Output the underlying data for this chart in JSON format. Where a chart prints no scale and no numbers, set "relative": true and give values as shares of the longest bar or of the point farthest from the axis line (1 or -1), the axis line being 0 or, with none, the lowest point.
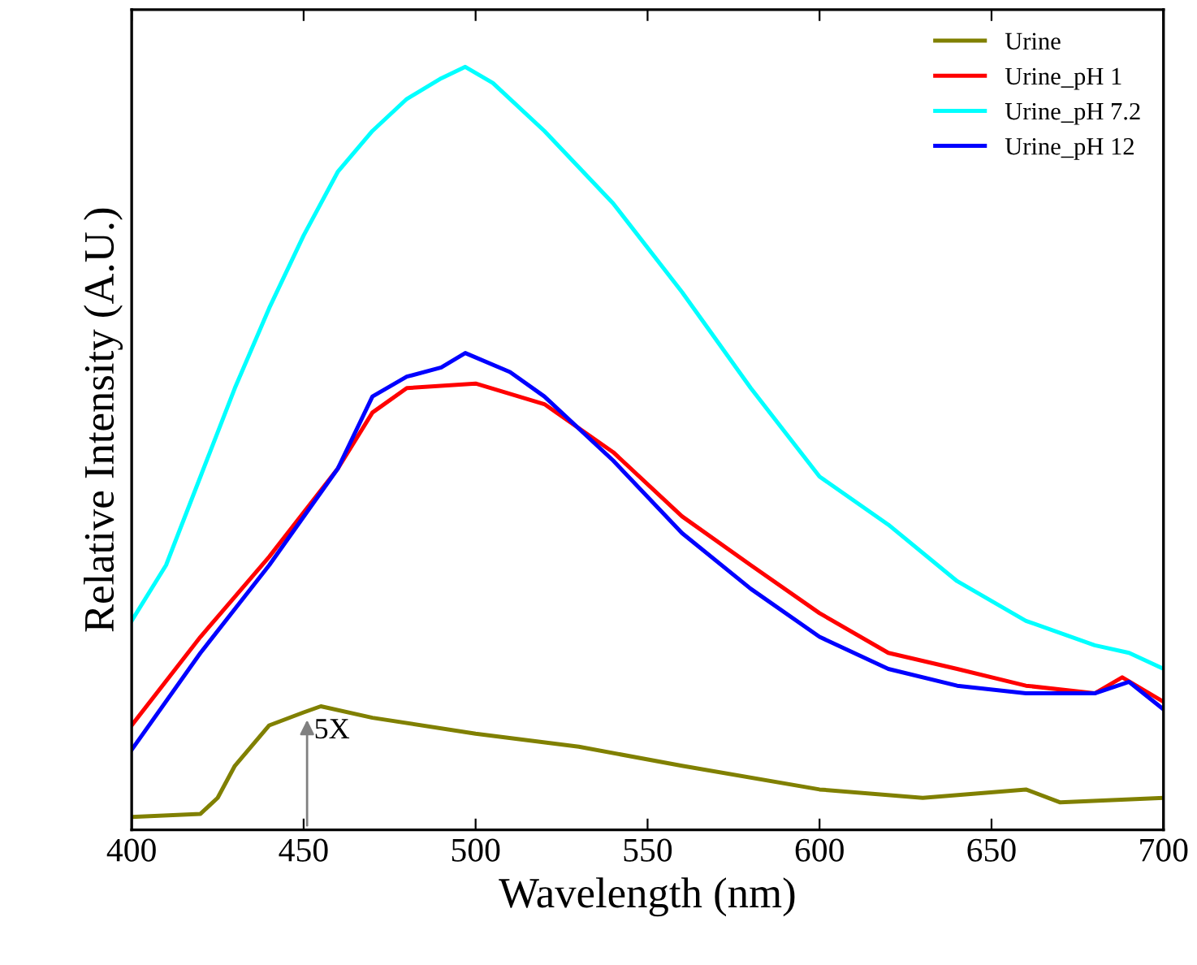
{
  "chart_data": {
    "type": "line",
    "relative": true,
    "xlabel": "Wavelength (nm)",
    "ylabel": "Relative Intensity (A.U.)",
    "xlim": [
      400,
      700
    ],
    "xticks": [
      400,
      450,
      500,
      550,
      600,
      650,
      700
    ],
    "grid": false,
    "legend": "top right",
    "line_style": "solid",
    "annotations": [
      {
        "text": "5X",
        "x": 451,
        "y": 0.15
      }
    ],
    "series": [
      {
        "name": "Urine",
        "color": "#808000",
        "x": [
          400,
          420,
          425,
          430,
          440,
          450,
          455,
          470,
          500,
          530,
          560,
          600,
          630,
          660,
          670,
          700
        ],
        "values": [
          0.017,
          0.021,
          0.042,
          0.084,
          0.137,
          0.154,
          0.162,
          0.147,
          0.126,
          0.109,
          0.084,
          0.053,
          0.042,
          0.053,
          0.036,
          0.042
        ]
      },
      {
        "name": "Urine_pH 1",
        "color": "#ff0000",
        "x": [
          400,
          420,
          440,
          460,
          470,
          480,
          500,
          520,
          540,
          560,
          580,
          600,
          620,
          640,
          660,
          680,
          688,
          700
        ],
        "values": [
          0.137,
          0.253,
          0.358,
          0.474,
          0.547,
          0.579,
          0.585,
          0.558,
          0.495,
          0.411,
          0.347,
          0.284,
          0.232,
          0.211,
          0.189,
          0.179,
          0.2,
          0.168
        ]
      },
      {
        "name": "Urine_pH 7.2",
        "color": "#00ffff",
        "x": [
          400,
          410,
          420,
          430,
          440,
          450,
          460,
          470,
          480,
          490,
          497,
          505,
          520,
          540,
          560,
          580,
          600,
          620,
          640,
          660,
          680,
          690,
          700
        ],
        "values": [
          0.274,
          0.347,
          0.463,
          0.579,
          0.684,
          0.779,
          0.863,
          0.916,
          0.958,
          0.985,
          1.0,
          0.979,
          0.916,
          0.821,
          0.705,
          0.579,
          0.463,
          0.4,
          0.326,
          0.274,
          0.242,
          0.232,
          0.211
        ]
      },
      {
        "name": "Urine_pH 12",
        "color": "#0000ff",
        "x": [
          400,
          420,
          440,
          460,
          470,
          480,
          490,
          497,
          510,
          520,
          540,
          560,
          580,
          600,
          620,
          640,
          660,
          680,
          690,
          700
        ],
        "values": [
          0.105,
          0.232,
          0.347,
          0.474,
          0.568,
          0.594,
          0.606,
          0.625,
          0.6,
          0.568,
          0.484,
          0.389,
          0.316,
          0.253,
          0.211,
          0.189,
          0.179,
          0.179,
          0.194,
          0.158
        ]
      }
    ]
  }
}
